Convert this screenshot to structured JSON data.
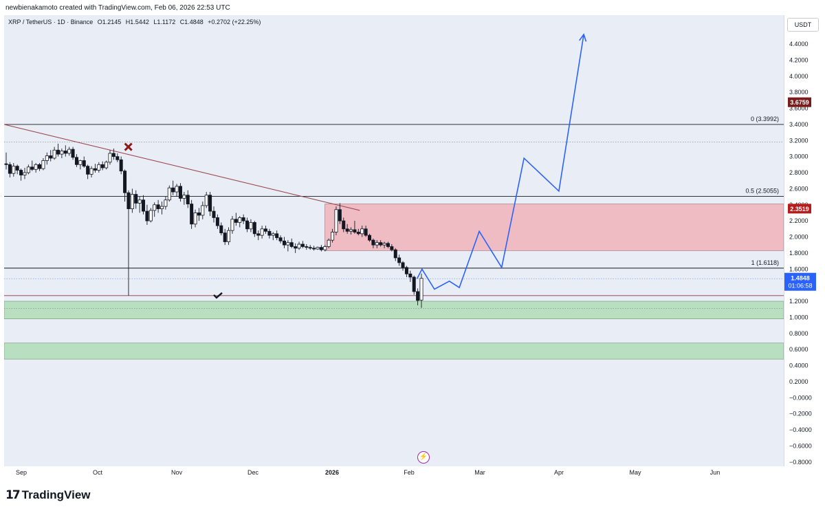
{
  "header": {
    "credit": "newbienakamoto created with TradingView.com, Feb 06, 2026 22:53 UTC"
  },
  "symbol": {
    "name": "XRP / TetherUS · 1D · Binance",
    "open": "O1.2145",
    "high": "H1.5442",
    "low": "L1.1172",
    "close": "C1.4848",
    "change": "+0.2702 (+22.25%)"
  },
  "currency_button": "USDT",
  "branding": {
    "logo_mark": "17",
    "logo_text": "TradingView"
  },
  "colors": {
    "background": "#e9edf5",
    "up": "#131722",
    "down": "#131722",
    "projection": "#2962ff",
    "trendline": "#9c4a52",
    "resistance_zone": "#f0bcc4",
    "support_zone": "#b8dfc0",
    "last_price": "#2962ff",
    "level_badge": "#b71c1c"
  },
  "chart_data": {
    "type": "candlestick",
    "x_axis_labels": [
      "Sep",
      "Oct",
      "Nov",
      "Dec",
      "2026",
      "Feb",
      "Mar",
      "Apr",
      "May",
      "Jun"
    ],
    "y_axis_ticks": [
      "4.4000",
      "4.2000",
      "4.0000",
      "3.8000",
      "3.6000",
      "3.4000",
      "3.2000",
      "3.0000",
      "2.8000",
      "2.6000",
      "2.4000",
      "2.2000",
      "2.0000",
      "1.8000",
      "1.6000",
      "1.4000",
      "1.2000",
      "1.0000",
      "0.8000",
      "0.6000",
      "0.4000",
      "0.2000",
      "−0.0000",
      "−0.2000",
      "−0.4000",
      "−0.6000",
      "−0.8000"
    ],
    "ylim": [
      -0.8,
      5.0
    ],
    "price_badges": [
      {
        "value": "3.6759",
        "price": 3.6759,
        "color": "#7b1c1c"
      },
      {
        "value": "2.3519",
        "price": 2.3519,
        "color": "#b71c1c"
      }
    ],
    "last_price": {
      "value": "1.4848",
      "countdown": "01:06:58",
      "price": 1.4848
    },
    "fib_levels": [
      {
        "label": "0 (3.3992)",
        "price": 3.3992
      },
      {
        "label": "0.5 (2.5055)",
        "price": 2.5055
      },
      {
        "label": "1 (1.6118)",
        "price": 1.6118
      }
    ],
    "dotted_levels": [
      3.18,
      1.48,
      1.11
    ],
    "support_line": 1.27,
    "resistance_zone": {
      "from": 1.83,
      "to": 2.41,
      "start_date": "2026-01-01"
    },
    "support_zones": [
      {
        "from": 0.98,
        "to": 1.2
      },
      {
        "from": 0.48,
        "to": 0.68
      }
    ],
    "trendline": {
      "from": {
        "date": "2025-08-25",
        "price": 3.4
      },
      "to": {
        "date": "2026-01-15",
        "price": 2.33
      }
    },
    "markers": [
      {
        "type": "cross",
        "date": "2025-10-14",
        "price": 3.12,
        "color": "#8b1a1a"
      },
      {
        "type": "check",
        "date": "2025-11-19",
        "price": 1.27,
        "color": "#131722"
      }
    ],
    "projection": [
      {
        "date": "2026-02-07",
        "price": 1.48
      },
      {
        "date": "2026-02-09",
        "price": 1.6
      },
      {
        "date": "2026-02-14",
        "price": 1.35
      },
      {
        "date": "2026-02-20",
        "price": 1.45
      },
      {
        "date": "2026-02-24",
        "price": 1.37
      },
      {
        "date": "2026-03-04",
        "price": 2.07
      },
      {
        "date": "2026-03-13",
        "price": 1.62
      },
      {
        "date": "2026-03-22",
        "price": 2.98
      },
      {
        "date": "2026-04-05",
        "price": 2.57
      },
      {
        "date": "2026-04-15",
        "price": 4.52
      }
    ],
    "candles": [
      [
        2.91,
        3.05,
        2.84,
        2.9
      ],
      [
        2.9,
        2.93,
        2.74,
        2.79
      ],
      [
        2.79,
        2.92,
        2.75,
        2.88
      ],
      [
        2.88,
        2.9,
        2.78,
        2.83
      ],
      [
        2.83,
        2.85,
        2.7,
        2.77
      ],
      [
        2.77,
        2.86,
        2.72,
        2.8
      ],
      [
        2.8,
        2.9,
        2.78,
        2.87
      ],
      [
        2.87,
        2.95,
        2.82,
        2.84
      ],
      [
        2.84,
        2.92,
        2.8,
        2.9
      ],
      [
        2.9,
        2.92,
        2.82,
        2.85
      ],
      [
        2.85,
        2.98,
        2.83,
        2.95
      ],
      [
        2.95,
        3.05,
        2.9,
        3.01
      ],
      [
        3.01,
        3.08,
        2.94,
        2.98
      ],
      [
        2.98,
        3.12,
        2.96,
        3.08
      ],
      [
        3.08,
        3.16,
        3.0,
        3.03
      ],
      [
        3.03,
        3.1,
        2.98,
        3.07
      ],
      [
        3.07,
        3.14,
        3.0,
        3.04
      ],
      [
        3.04,
        3.12,
        3.01,
        3.09
      ],
      [
        3.09,
        3.12,
        2.96,
        2.99
      ],
      [
        2.99,
        3.03,
        2.87,
        2.9
      ],
      [
        2.9,
        2.96,
        2.84,
        2.95
      ],
      [
        2.95,
        3.0,
        2.86,
        2.88
      ],
      [
        2.88,
        2.9,
        2.72,
        2.78
      ],
      [
        2.78,
        2.88,
        2.74,
        2.85
      ],
      [
        2.85,
        2.91,
        2.8,
        2.83
      ],
      [
        2.83,
        2.93,
        2.8,
        2.9
      ],
      [
        2.9,
        2.94,
        2.83,
        2.86
      ],
      [
        2.86,
        2.95,
        2.84,
        2.93
      ],
      [
        2.93,
        3.08,
        2.9,
        3.04
      ],
      [
        3.04,
        3.1,
        2.96,
        3.0
      ],
      [
        3.0,
        3.04,
        2.93,
        2.96
      ],
      [
        2.96,
        3.0,
        2.78,
        2.82
      ],
      [
        2.82,
        2.84,
        2.44,
        2.55
      ],
      [
        2.55,
        2.58,
        1.27,
        2.35
      ],
      [
        2.35,
        2.6,
        2.3,
        2.53
      ],
      [
        2.53,
        2.58,
        2.35,
        2.42
      ],
      [
        2.42,
        2.5,
        2.3,
        2.46
      ],
      [
        2.46,
        2.52,
        2.28,
        2.32
      ],
      [
        2.32,
        2.4,
        2.15,
        2.2
      ],
      [
        2.2,
        2.36,
        2.18,
        2.33
      ],
      [
        2.33,
        2.43,
        2.25,
        2.4
      ],
      [
        2.4,
        2.46,
        2.3,
        2.35
      ],
      [
        2.35,
        2.44,
        2.28,
        2.38
      ],
      [
        2.38,
        2.5,
        2.34,
        2.46
      ],
      [
        2.46,
        2.64,
        2.44,
        2.61
      ],
      [
        2.61,
        2.7,
        2.52,
        2.56
      ],
      [
        2.56,
        2.66,
        2.5,
        2.63
      ],
      [
        2.63,
        2.67,
        2.44,
        2.48
      ],
      [
        2.48,
        2.56,
        2.4,
        2.52
      ],
      [
        2.52,
        2.58,
        2.36,
        2.41
      ],
      [
        2.41,
        2.46,
        2.1,
        2.16
      ],
      [
        2.16,
        2.34,
        2.12,
        2.3
      ],
      [
        2.3,
        2.36,
        2.2,
        2.27
      ],
      [
        2.27,
        2.44,
        2.22,
        2.39
      ],
      [
        2.39,
        2.56,
        2.36,
        2.52
      ],
      [
        2.52,
        2.56,
        2.26,
        2.32
      ],
      [
        2.32,
        2.38,
        2.18,
        2.24
      ],
      [
        2.24,
        2.28,
        2.1,
        2.14
      ],
      [
        2.14,
        2.18,
        2.02,
        2.05
      ],
      [
        2.05,
        2.1,
        1.9,
        1.94
      ],
      [
        1.94,
        2.12,
        1.9,
        2.08
      ],
      [
        2.08,
        2.26,
        2.04,
        2.22
      ],
      [
        2.22,
        2.3,
        2.14,
        2.18
      ],
      [
        2.18,
        2.26,
        2.12,
        2.24
      ],
      [
        2.24,
        2.28,
        2.16,
        2.2
      ],
      [
        2.2,
        2.24,
        2.06,
        2.1
      ],
      [
        2.1,
        2.22,
        2.06,
        2.18
      ],
      [
        2.18,
        2.2,
        2.0,
        2.04
      ],
      [
        2.04,
        2.08,
        1.96,
        2.02
      ],
      [
        2.02,
        2.14,
        1.98,
        2.1
      ],
      [
        2.1,
        2.14,
        2.04,
        2.07
      ],
      [
        2.07,
        2.1,
        1.98,
        2.02
      ],
      [
        2.02,
        2.06,
        1.96,
        2.04
      ],
      [
        2.04,
        2.08,
        1.96,
        1.99
      ],
      [
        1.99,
        2.02,
        1.92,
        1.95
      ],
      [
        1.95,
        2.0,
        1.86,
        1.9
      ],
      [
        1.9,
        1.96,
        1.82,
        1.93
      ],
      [
        1.93,
        1.98,
        1.86,
        1.88
      ],
      [
        1.88,
        1.92,
        1.8,
        1.86
      ],
      [
        1.86,
        1.94,
        1.84,
        1.91
      ],
      [
        1.91,
        1.95,
        1.86,
        1.88
      ],
      [
        1.88,
        1.91,
        1.84,
        1.87
      ],
      [
        1.87,
        1.9,
        1.84,
        1.86
      ],
      [
        1.86,
        1.89,
        1.83,
        1.85
      ],
      [
        1.85,
        1.88,
        1.84,
        1.87
      ],
      [
        1.87,
        1.9,
        1.82,
        1.84
      ],
      [
        1.84,
        1.9,
        1.82,
        1.88
      ],
      [
        1.88,
        1.98,
        1.86,
        1.96
      ],
      [
        1.96,
        2.1,
        1.93,
        2.06
      ],
      [
        2.06,
        2.38,
        2.02,
        2.34
      ],
      [
        2.34,
        2.42,
        2.16,
        2.2
      ],
      [
        2.2,
        2.24,
        2.06,
        2.1
      ],
      [
        2.1,
        2.16,
        2.04,
        2.07
      ],
      [
        2.07,
        2.12,
        2.03,
        2.09
      ],
      [
        2.09,
        2.2,
        2.04,
        2.06
      ],
      [
        2.06,
        2.1,
        2.02,
        2.04
      ],
      [
        2.04,
        2.14,
        2.0,
        2.1
      ],
      [
        2.1,
        2.14,
        2.0,
        2.02
      ],
      [
        2.02,
        2.04,
        1.94,
        1.96
      ],
      [
        1.96,
        1.98,
        1.86,
        1.9
      ],
      [
        1.9,
        1.96,
        1.86,
        1.93
      ],
      [
        1.93,
        1.96,
        1.88,
        1.9
      ],
      [
        1.9,
        1.94,
        1.86,
        1.92
      ],
      [
        1.92,
        1.94,
        1.86,
        1.88
      ],
      [
        1.88,
        1.91,
        1.82,
        1.84
      ],
      [
        1.84,
        1.86,
        1.7,
        1.74
      ],
      [
        1.74,
        1.78,
        1.64,
        1.68
      ],
      [
        1.68,
        1.7,
        1.58,
        1.62
      ],
      [
        1.62,
        1.64,
        1.5,
        1.54
      ],
      [
        1.54,
        1.58,
        1.44,
        1.5
      ],
      [
        1.5,
        1.52,
        1.28,
        1.32
      ],
      [
        1.32,
        1.36,
        1.15,
        1.21
      ],
      [
        1.2145,
        1.5442,
        1.1172,
        1.4848
      ]
    ]
  }
}
